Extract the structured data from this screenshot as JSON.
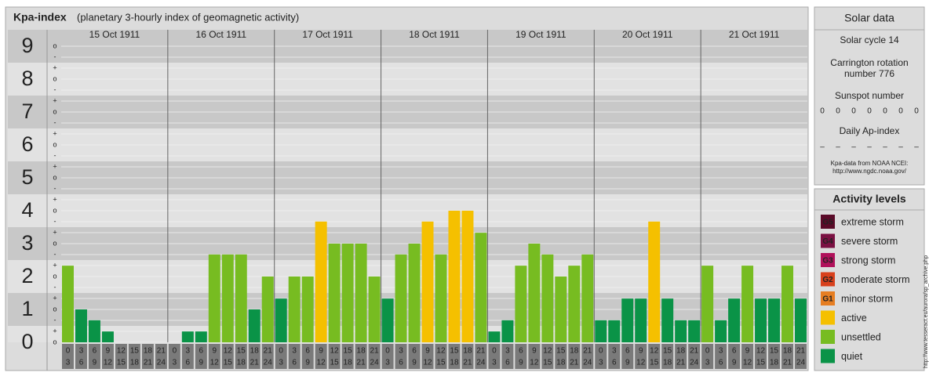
{
  "chart_data": {
    "type": "bar",
    "title": "Kpa-index",
    "subtitle": "(planetary 3-hourly index of geomagnetic activity)",
    "ylim": [
      0,
      9.5
    ],
    "yticks": [
      0,
      1,
      2,
      3,
      4,
      5,
      6,
      7,
      8,
      9
    ],
    "minor_tick_labels": [
      "-",
      "o",
      "+"
    ],
    "grid": true,
    "hours": [
      0,
      3,
      6,
      9,
      12,
      15,
      18,
      21,
      24
    ],
    "days": [
      {
        "label": "15 Oct 1911",
        "values": [
          2.33,
          1,
          0.67,
          0.33,
          0,
          0,
          0,
          0
        ],
        "colors": [
          "#77bc21",
          "#0a9347",
          "#0a9347",
          "#0a9347",
          "#0a9347",
          "#0a9347",
          "#0a9347",
          "#0a9347"
        ]
      },
      {
        "label": "16 Oct 1911",
        "values": [
          0,
          0.33,
          0.33,
          2.67,
          2.67,
          2.67,
          1,
          2
        ],
        "colors": [
          "#0a9347",
          "#0a9347",
          "#0a9347",
          "#77bc21",
          "#77bc21",
          "#77bc21",
          "#0a9347",
          "#77bc21"
        ]
      },
      {
        "label": "17 Oct 1911",
        "values": [
          1.33,
          2,
          2,
          3.67,
          3,
          3,
          3,
          2
        ],
        "colors": [
          "#0a9347",
          "#77bc21",
          "#77bc21",
          "#f5c000",
          "#77bc21",
          "#77bc21",
          "#77bc21",
          "#77bc21"
        ]
      },
      {
        "label": "18 Oct 1911",
        "values": [
          1.33,
          2.67,
          3,
          3.67,
          2.67,
          4,
          4,
          3.33
        ],
        "colors": [
          "#0a9347",
          "#77bc21",
          "#77bc21",
          "#f5c000",
          "#77bc21",
          "#f5c000",
          "#f5c000",
          "#77bc21"
        ]
      },
      {
        "label": "19 Oct 1911",
        "values": [
          0.33,
          0.67,
          2.33,
          3,
          2.67,
          2,
          2.33,
          2.67
        ],
        "colors": [
          "#0a9347",
          "#0a9347",
          "#77bc21",
          "#77bc21",
          "#77bc21",
          "#77bc21",
          "#77bc21",
          "#77bc21"
        ]
      },
      {
        "label": "20 Oct 1911",
        "values": [
          0.67,
          0.67,
          1.33,
          1.33,
          3.67,
          1.33,
          0.67,
          0.67
        ],
        "colors": [
          "#0a9347",
          "#0a9347",
          "#0a9347",
          "#0a9347",
          "#f5c000",
          "#0a9347",
          "#0a9347",
          "#0a9347"
        ]
      },
      {
        "label": "21 Oct 1911",
        "values": [
          2.33,
          0.67,
          1.33,
          2.33,
          1.33,
          1.33,
          2.33,
          1.33
        ],
        "colors": [
          "#77bc21",
          "#0a9347",
          "#0a9347",
          "#77bc21",
          "#0a9347",
          "#0a9347",
          "#77bc21",
          "#0a9347"
        ]
      }
    ]
  },
  "solar_data": {
    "title": "Solar data",
    "solar_cycle": "Solar cycle 14",
    "carrington": [
      "Carrington rotation",
      "number 776"
    ],
    "sunspot_title": "Sunspot number",
    "sunspot": [
      0,
      0,
      0,
      0,
      0,
      0,
      0
    ],
    "ap_title": "Daily Ap-index",
    "ap": [
      "–",
      "–",
      "–",
      "–",
      "–",
      "–",
      "–"
    ],
    "source": [
      "Kpa-data from NOAA NCEI:",
      "http://www.ngdc.noaa.gov/"
    ]
  },
  "activity_levels": {
    "title": "Activity levels",
    "levels": [
      {
        "badge": "G5",
        "label": "extreme storm",
        "color": "#5a0a28"
      },
      {
        "badge": "G4",
        "label": "severe storm",
        "color": "#7a1042"
      },
      {
        "badge": "G3",
        "label": "strong storm",
        "color": "#b0105a"
      },
      {
        "badge": "G2",
        "label": "moderate storm",
        "color": "#d8401c"
      },
      {
        "badge": "G1",
        "label": "minor storm",
        "color": "#e67e22"
      },
      {
        "label": "active",
        "color": "#f5c000"
      },
      {
        "label": "unsettled",
        "color": "#77bc21"
      },
      {
        "label": "quiet",
        "color": "#0a9347"
      }
    ]
  },
  "watermark": "http://www.tesseract.eu/aurora/sp_archive.php"
}
